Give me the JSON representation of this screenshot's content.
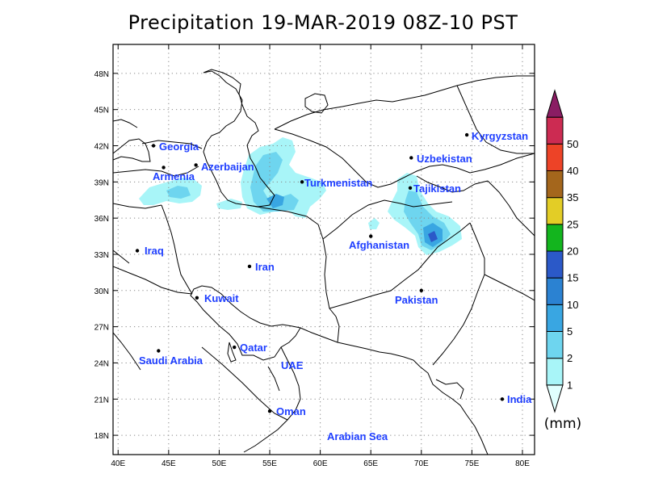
{
  "title": "Precipitation 19-MAR-2019 08Z-10 PST",
  "axes": {
    "x_ticks": [
      {
        "lon": 40,
        "label": "40E"
      },
      {
        "lon": 45,
        "label": "45E"
      },
      {
        "lon": 50,
        "label": "50E"
      },
      {
        "lon": 55,
        "label": "55E"
      },
      {
        "lon": 60,
        "label": "60E"
      },
      {
        "lon": 65,
        "label": "65E"
      },
      {
        "lon": 70,
        "label": "70E"
      },
      {
        "lon": 75,
        "label": "75E"
      },
      {
        "lon": 80,
        "label": "80E"
      }
    ],
    "y_ticks": [
      {
        "lat": 18,
        "label": "18N"
      },
      {
        "lat": 21,
        "label": "21N"
      },
      {
        "lat": 24,
        "label": "24N"
      },
      {
        "lat": 27,
        "label": "27N"
      },
      {
        "lat": 30,
        "label": "30N"
      },
      {
        "lat": 33,
        "label": "33N"
      },
      {
        "lat": 36,
        "label": "36N"
      },
      {
        "lat": 39,
        "label": "39N"
      },
      {
        "lat": 42,
        "label": "42N"
      },
      {
        "lat": 45,
        "label": "45N"
      },
      {
        "lat": 48,
        "label": "48N"
      }
    ],
    "lon_range": [
      39.5,
      81.2
    ],
    "lat_range": [
      16.4,
      50.4
    ],
    "grid": "dotted"
  },
  "places": [
    {
      "name": "Georgia",
      "lon": 43.5,
      "lat": 42.0
    },
    {
      "name": "Azerbaijan",
      "lon": 47.7,
      "lat": 40.4
    },
    {
      "name": "Armenia",
      "lon": 44.5,
      "lat": 40.2
    },
    {
      "name": "Turkmenistan",
      "lon": 58.2,
      "lat": 39.0
    },
    {
      "name": "Uzbekistan",
      "lon": 69.0,
      "lat": 41.0
    },
    {
      "name": "Kyrgyzstan",
      "lon": 74.5,
      "lat": 42.9
    },
    {
      "name": "Tajikistan",
      "lon": 68.9,
      "lat": 38.5
    },
    {
      "name": "Afghanistan",
      "lon": 65.0,
      "lat": 34.5
    },
    {
      "name": "Iraq",
      "lon": 41.9,
      "lat": 33.3
    },
    {
      "name": "Iran",
      "lon": 53.0,
      "lat": 32.0
    },
    {
      "name": "Pakistan",
      "lon": 70.0,
      "lat": 30.0
    },
    {
      "name": "Kuwait",
      "lon": 47.8,
      "lat": 29.4
    },
    {
      "name": "Qatar",
      "lon": 51.5,
      "lat": 25.3
    },
    {
      "name": "Saudi Arabia",
      "lon": 44.0,
      "lat": 25.0
    },
    {
      "name": "UAE",
      "lon": null,
      "lat": null
    },
    {
      "name": "India",
      "lon": 78.0,
      "lat": 21.0
    },
    {
      "name": "Oman",
      "lon": 55.0,
      "lat": 20.0
    },
    {
      "name": "Arabian Sea",
      "lon": null,
      "lat": null
    }
  ],
  "colorbar": {
    "levels": [
      "1",
      "2",
      "5",
      "10",
      "15",
      "20",
      "25",
      "35",
      "40",
      "50"
    ],
    "colors": [
      "#e0fffe",
      "#a8f5f8",
      "#6ed5ef",
      "#39a6e2",
      "#2b82d2",
      "#2b59c8",
      "#13b51e",
      "#e3cd26",
      "#a4661c",
      "#ed4327",
      "#cc2b52",
      "#8a1d63"
    ],
    "unit": "(mm)"
  },
  "precip_colors": {
    "light": "#a8f5f8",
    "medium": "#6ed5ef",
    "heavy": "#39a6e2",
    "heaviest": "#2b59c8"
  }
}
